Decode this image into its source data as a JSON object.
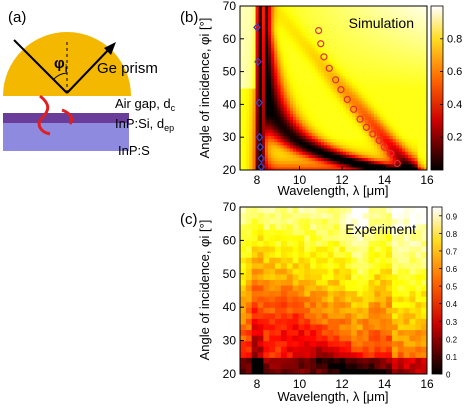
{
  "panels": {
    "a": {
      "label": "(a)"
    },
    "b": {
      "label": "(b)"
    },
    "c": {
      "label": "(c)"
    }
  },
  "schematic": {
    "prism_label": "Ge prism",
    "angle_symbol": "φ",
    "angle_subscript": "i",
    "air_gap_label": "Air gap, d",
    "air_gap_sub": "c",
    "layer1_label": "InP:Si, d",
    "layer1_sub": "ep",
    "layer2_label": "InP:S",
    "colors": {
      "prism": "#F5B800",
      "layer1": "#6A3D9A",
      "layer2": "#8E8AE0",
      "arrows": "#E02020"
    }
  },
  "chart_data": [
    {
      "type": "heatmap",
      "panel": "b",
      "annotation": "Simulation",
      "xlabel": "Wavelength, λ [μm]",
      "ylabel": "Angle of incidence, φi [°]",
      "xlim": [
        7.2,
        16
      ],
      "ylim": [
        20,
        70
      ],
      "xticks": [
        8,
        10,
        12,
        14,
        16
      ],
      "yticks": [
        20,
        30,
        40,
        50,
        60,
        70
      ],
      "colorbar": {
        "range": [
          0,
          1
        ],
        "ticks": [
          0.2,
          0.4,
          0.6,
          0.8
        ],
        "colormap": "hot"
      },
      "overlays": [
        {
          "marker": "diamond",
          "color": "#4040C0",
          "x": [
            8.0,
            8.05,
            8.1,
            8.12,
            8.15,
            8.2,
            8.2
          ],
          "y": [
            63.5,
            53,
            40.5,
            30,
            27,
            23.5,
            21
          ]
        },
        {
          "marker": "circle",
          "color": "#E03030",
          "x": [
            10.9,
            11.0,
            11.15,
            11.4,
            11.7,
            11.95,
            12.25,
            12.55,
            12.85,
            13.15,
            13.45,
            13.75,
            14.0,
            14.3,
            14.6
          ],
          "y": [
            62.5,
            58.5,
            54.5,
            51,
            47.5,
            44.5,
            41.5,
            38.5,
            35.5,
            33,
            31,
            29,
            27,
            25,
            22
          ]
        }
      ]
    },
    {
      "type": "heatmap",
      "panel": "c",
      "annotation": "Experiment",
      "xlabel": "Wavelength, λ [μm]",
      "ylabel": "Angle of incidence, φi [°]",
      "xlim": [
        7.2,
        16
      ],
      "ylim": [
        20,
        70
      ],
      "xticks": [
        8,
        10,
        12,
        14,
        16
      ],
      "yticks": [
        20,
        30,
        40,
        50,
        60,
        70
      ],
      "colorbar": {
        "range": [
          0,
          0.95
        ],
        "ticks": [
          0,
          0.1,
          0.2,
          0.3,
          0.4,
          0.5,
          0.6,
          0.7,
          0.8,
          0.9
        ],
        "colormap": "hot"
      }
    }
  ]
}
